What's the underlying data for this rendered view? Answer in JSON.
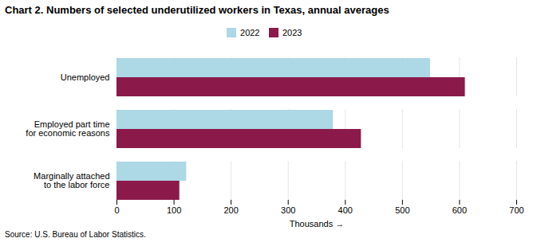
{
  "chart_data": {
    "type": "bar",
    "orientation": "horizontal",
    "title": "Chart 2.  Numbers of selected underutilized workers in Texas, annual averages",
    "categories": [
      "Unemployed",
      "Employed part time\nfor economic reasons",
      "Marginally attached\nto the labor force"
    ],
    "series": [
      {
        "name": "2022",
        "color": "#add8e6",
        "values": [
          549,
          379,
          122
        ]
      },
      {
        "name": "2023",
        "color": "#8B1A4A",
        "values": [
          610,
          428,
          110
        ]
      }
    ],
    "xlim": [
      0,
      700
    ],
    "xticks": [
      0,
      100,
      200,
      300,
      400,
      500,
      600,
      700
    ],
    "xlabel": "Thousands",
    "caption": "Source: U.S. Bureau of Labor Statistics.",
    "grid": true,
    "legend": "top"
  }
}
